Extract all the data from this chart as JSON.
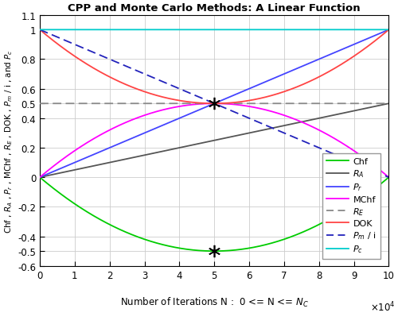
{
  "title": "CPP and Monte Carlo Methods: A Linear Function",
  "xlabel": "Number of Iterations N :  0 <= N <= N_C",
  "ylabel": "Chf , R_A , P_r , MChf , R_E , DOK , P_m / i , and Pc",
  "xlim": [
    0,
    100000.0
  ],
  "ylim": [
    -0.6,
    1.1
  ],
  "yticks": [
    -0.6,
    -0.5,
    -0.4,
    -0.2,
    0,
    0.2,
    0.4,
    0.5,
    0.6,
    0.8,
    1.0,
    1.1
  ],
  "ytick_labels": [
    "-0.6",
    "-0.5",
    "-0.4",
    "-0.2",
    "0",
    "0.2",
    "0.4",
    "0.5",
    "0.6",
    "0.8",
    "1",
    "1.1"
  ],
  "NC": 100000.0,
  "star_N": 50000.0,
  "colors": {
    "Chf": "#00cc00",
    "RA": "#555555",
    "Pr": "#4444ff",
    "MChf": "#ff00ff",
    "RE": "#888888",
    "DOK": "#ff4444",
    "Pm_i": "#2222bb",
    "Pc": "#00cccc"
  },
  "background_color": "#ffffff",
  "grid_color": "#cccccc"
}
